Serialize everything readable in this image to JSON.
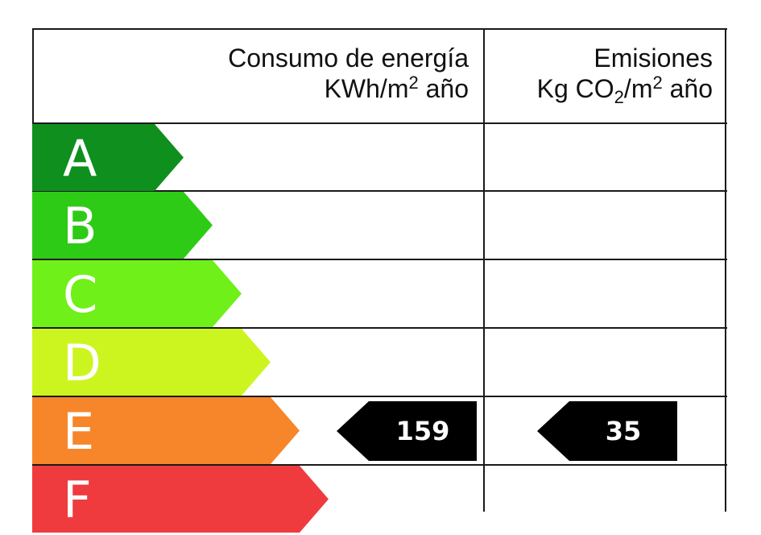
{
  "header": {
    "consumption_line1": "Consumo de energía",
    "consumption_unit_pre": "KWh/m",
    "consumption_unit_sup": "2",
    "consumption_unit_post": " año",
    "emissions_line1": "Emisiones",
    "emissions_unit_pre": "Kg CO",
    "emissions_unit_sub": "2",
    "emissions_unit_mid": "/m",
    "emissions_unit_sup": "2",
    "emissions_unit_post": " año"
  },
  "bands": [
    {
      "letter": "A",
      "color": "#0e8f1e"
    },
    {
      "letter": "B",
      "color": "#2ecb16"
    },
    {
      "letter": "C",
      "color": "#6ff018"
    },
    {
      "letter": "D",
      "color": "#ccf520"
    },
    {
      "letter": "E",
      "color": "#f7852a"
    },
    {
      "letter": "F",
      "color": "#ef3b3e"
    }
  ],
  "rating": {
    "band": "E",
    "consumption_value": "159",
    "emissions_value": "35",
    "pointer_color": "#000000"
  }
}
